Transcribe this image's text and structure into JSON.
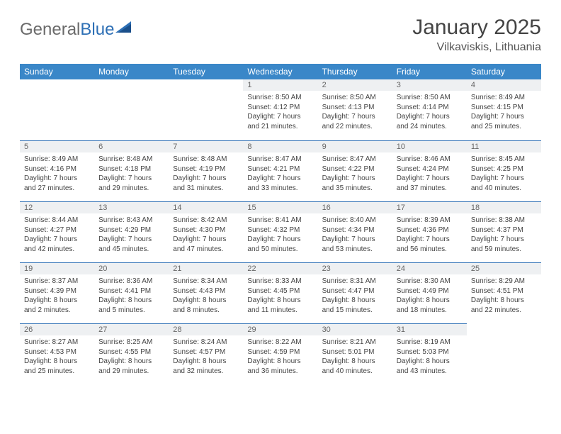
{
  "brand": {
    "word1": "General",
    "word2": "Blue"
  },
  "title": {
    "month": "January 2025",
    "location": "Vilkaviskis, Lithuania"
  },
  "colors": {
    "header_bg": "#3a87c8",
    "header_text": "#ffffff",
    "day_row_bg": "#eef0f2",
    "row_divider": "#2d6fb5",
    "body_text": "#444444",
    "brand_gray": "#6a6a6a",
    "brand_blue": "#2d6fb5"
  },
  "day_headers": [
    "Sunday",
    "Monday",
    "Tuesday",
    "Wednesday",
    "Thursday",
    "Friday",
    "Saturday"
  ],
  "weeks": [
    [
      {
        "empty": true
      },
      {
        "empty": true
      },
      {
        "empty": true
      },
      {
        "n": "1",
        "sunrise": "Sunrise: 8:50 AM",
        "sunset": "Sunset: 4:12 PM",
        "d1": "Daylight: 7 hours",
        "d2": "and 21 minutes."
      },
      {
        "n": "2",
        "sunrise": "Sunrise: 8:50 AM",
        "sunset": "Sunset: 4:13 PM",
        "d1": "Daylight: 7 hours",
        "d2": "and 22 minutes."
      },
      {
        "n": "3",
        "sunrise": "Sunrise: 8:50 AM",
        "sunset": "Sunset: 4:14 PM",
        "d1": "Daylight: 7 hours",
        "d2": "and 24 minutes."
      },
      {
        "n": "4",
        "sunrise": "Sunrise: 8:49 AM",
        "sunset": "Sunset: 4:15 PM",
        "d1": "Daylight: 7 hours",
        "d2": "and 25 minutes."
      }
    ],
    [
      {
        "n": "5",
        "sunrise": "Sunrise: 8:49 AM",
        "sunset": "Sunset: 4:16 PM",
        "d1": "Daylight: 7 hours",
        "d2": "and 27 minutes."
      },
      {
        "n": "6",
        "sunrise": "Sunrise: 8:48 AM",
        "sunset": "Sunset: 4:18 PM",
        "d1": "Daylight: 7 hours",
        "d2": "and 29 minutes."
      },
      {
        "n": "7",
        "sunrise": "Sunrise: 8:48 AM",
        "sunset": "Sunset: 4:19 PM",
        "d1": "Daylight: 7 hours",
        "d2": "and 31 minutes."
      },
      {
        "n": "8",
        "sunrise": "Sunrise: 8:47 AM",
        "sunset": "Sunset: 4:21 PM",
        "d1": "Daylight: 7 hours",
        "d2": "and 33 minutes."
      },
      {
        "n": "9",
        "sunrise": "Sunrise: 8:47 AM",
        "sunset": "Sunset: 4:22 PM",
        "d1": "Daylight: 7 hours",
        "d2": "and 35 minutes."
      },
      {
        "n": "10",
        "sunrise": "Sunrise: 8:46 AM",
        "sunset": "Sunset: 4:24 PM",
        "d1": "Daylight: 7 hours",
        "d2": "and 37 minutes."
      },
      {
        "n": "11",
        "sunrise": "Sunrise: 8:45 AM",
        "sunset": "Sunset: 4:25 PM",
        "d1": "Daylight: 7 hours",
        "d2": "and 40 minutes."
      }
    ],
    [
      {
        "n": "12",
        "sunrise": "Sunrise: 8:44 AM",
        "sunset": "Sunset: 4:27 PM",
        "d1": "Daylight: 7 hours",
        "d2": "and 42 minutes."
      },
      {
        "n": "13",
        "sunrise": "Sunrise: 8:43 AM",
        "sunset": "Sunset: 4:29 PM",
        "d1": "Daylight: 7 hours",
        "d2": "and 45 minutes."
      },
      {
        "n": "14",
        "sunrise": "Sunrise: 8:42 AM",
        "sunset": "Sunset: 4:30 PM",
        "d1": "Daylight: 7 hours",
        "d2": "and 47 minutes."
      },
      {
        "n": "15",
        "sunrise": "Sunrise: 8:41 AM",
        "sunset": "Sunset: 4:32 PM",
        "d1": "Daylight: 7 hours",
        "d2": "and 50 minutes."
      },
      {
        "n": "16",
        "sunrise": "Sunrise: 8:40 AM",
        "sunset": "Sunset: 4:34 PM",
        "d1": "Daylight: 7 hours",
        "d2": "and 53 minutes."
      },
      {
        "n": "17",
        "sunrise": "Sunrise: 8:39 AM",
        "sunset": "Sunset: 4:36 PM",
        "d1": "Daylight: 7 hours",
        "d2": "and 56 minutes."
      },
      {
        "n": "18",
        "sunrise": "Sunrise: 8:38 AM",
        "sunset": "Sunset: 4:37 PM",
        "d1": "Daylight: 7 hours",
        "d2": "and 59 minutes."
      }
    ],
    [
      {
        "n": "19",
        "sunrise": "Sunrise: 8:37 AM",
        "sunset": "Sunset: 4:39 PM",
        "d1": "Daylight: 8 hours",
        "d2": "and 2 minutes."
      },
      {
        "n": "20",
        "sunrise": "Sunrise: 8:36 AM",
        "sunset": "Sunset: 4:41 PM",
        "d1": "Daylight: 8 hours",
        "d2": "and 5 minutes."
      },
      {
        "n": "21",
        "sunrise": "Sunrise: 8:34 AM",
        "sunset": "Sunset: 4:43 PM",
        "d1": "Daylight: 8 hours",
        "d2": "and 8 minutes."
      },
      {
        "n": "22",
        "sunrise": "Sunrise: 8:33 AM",
        "sunset": "Sunset: 4:45 PM",
        "d1": "Daylight: 8 hours",
        "d2": "and 11 minutes."
      },
      {
        "n": "23",
        "sunrise": "Sunrise: 8:31 AM",
        "sunset": "Sunset: 4:47 PM",
        "d1": "Daylight: 8 hours",
        "d2": "and 15 minutes."
      },
      {
        "n": "24",
        "sunrise": "Sunrise: 8:30 AM",
        "sunset": "Sunset: 4:49 PM",
        "d1": "Daylight: 8 hours",
        "d2": "and 18 minutes."
      },
      {
        "n": "25",
        "sunrise": "Sunrise: 8:29 AM",
        "sunset": "Sunset: 4:51 PM",
        "d1": "Daylight: 8 hours",
        "d2": "and 22 minutes."
      }
    ],
    [
      {
        "n": "26",
        "sunrise": "Sunrise: 8:27 AM",
        "sunset": "Sunset: 4:53 PM",
        "d1": "Daylight: 8 hours",
        "d2": "and 25 minutes."
      },
      {
        "n": "27",
        "sunrise": "Sunrise: 8:25 AM",
        "sunset": "Sunset: 4:55 PM",
        "d1": "Daylight: 8 hours",
        "d2": "and 29 minutes."
      },
      {
        "n": "28",
        "sunrise": "Sunrise: 8:24 AM",
        "sunset": "Sunset: 4:57 PM",
        "d1": "Daylight: 8 hours",
        "d2": "and 32 minutes."
      },
      {
        "n": "29",
        "sunrise": "Sunrise: 8:22 AM",
        "sunset": "Sunset: 4:59 PM",
        "d1": "Daylight: 8 hours",
        "d2": "and 36 minutes."
      },
      {
        "n": "30",
        "sunrise": "Sunrise: 8:21 AM",
        "sunset": "Sunset: 5:01 PM",
        "d1": "Daylight: 8 hours",
        "d2": "and 40 minutes."
      },
      {
        "n": "31",
        "sunrise": "Sunrise: 8:19 AM",
        "sunset": "Sunset: 5:03 PM",
        "d1": "Daylight: 8 hours",
        "d2": "and 43 minutes."
      },
      {
        "empty": true
      }
    ]
  ]
}
